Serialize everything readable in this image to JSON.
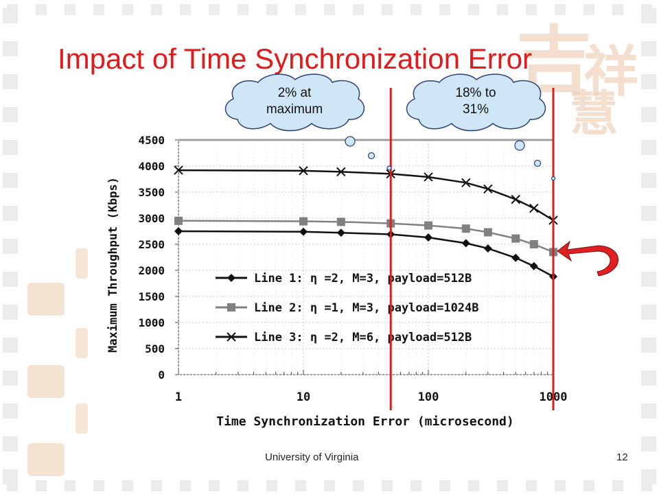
{
  "slide": {
    "title": "Impact of Time Synchronization Error",
    "footer": "University of Virginia",
    "page_number": "12"
  },
  "callouts": [
    {
      "line1": "2% at",
      "line2": "maximum"
    },
    {
      "line1": "18% to",
      "line2": "31%"
    }
  ],
  "colors": {
    "title": "#e11b1b",
    "marker_lines": "#d42020",
    "bubble_fill": "#cfe6f7",
    "bubble_stroke": "#2b3f78",
    "arrow": "#e02020"
  },
  "chart_data": {
    "type": "line",
    "xlabel": "Time Synchronization Error (microsecond)",
    "ylabel": "Maximum Throughput (Kbps)",
    "xscale": "log",
    "xlim": [
      1,
      1000
    ],
    "ylim": [
      0,
      4500
    ],
    "xticks": [
      "1",
      "10",
      "100",
      "1000"
    ],
    "yticks": [
      "0",
      "500",
      "1000",
      "1500",
      "2000",
      "2500",
      "3000",
      "3500",
      "4000",
      "4500"
    ],
    "grid": true,
    "legend_position": "center-right",
    "series": [
      {
        "name": "Line 1:  η =2, M=3, payload=512B",
        "marker": "diamond",
        "color": "#111111",
        "x": [
          1,
          10,
          20,
          50,
          100,
          200,
          300,
          500,
          700,
          1000
        ],
        "y": [
          2750,
          2740,
          2720,
          2690,
          2630,
          2520,
          2420,
          2240,
          2080,
          1880
        ]
      },
      {
        "name": "Line 2:  η =1, M=3, payload=1024B",
        "marker": "square",
        "color": "#808080",
        "x": [
          1,
          10,
          20,
          50,
          100,
          200,
          300,
          500,
          700,
          1000
        ],
        "y": [
          2950,
          2940,
          2930,
          2900,
          2860,
          2800,
          2730,
          2610,
          2500,
          2350
        ]
      },
      {
        "name": "Line 3:  η =2, M=6, payload=512B",
        "marker": "x",
        "color": "#111111",
        "x": [
          1,
          10,
          20,
          50,
          100,
          200,
          300,
          500,
          700,
          1000
        ],
        "y": [
          3920,
          3910,
          3890,
          3850,
          3790,
          3680,
          3560,
          3360,
          3190,
          2960
        ]
      },
      {
        "name": "",
        "marker": "none",
        "color": "#a0a0a0",
        "x": [
          1,
          1000
        ],
        "y": [
          4500,
          4500
        ]
      }
    ],
    "reference_lines_x": [
      50,
      1000
    ]
  }
}
